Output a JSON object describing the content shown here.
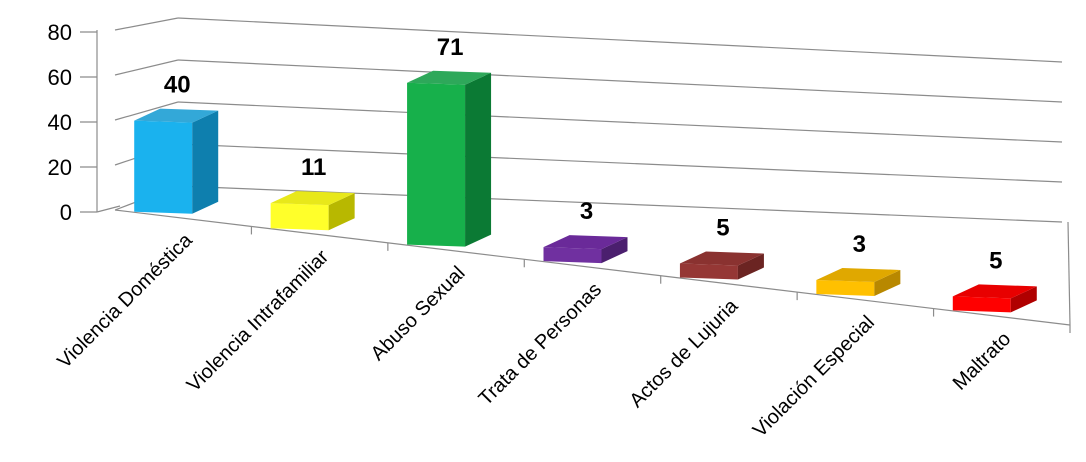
{
  "chart_data": {
    "type": "bar",
    "title": "",
    "xlabel": "",
    "ylabel": "",
    "ylim": [
      0,
      80
    ],
    "yticks": [
      0,
      20,
      40,
      60,
      80
    ],
    "grid": true,
    "legend": "none",
    "categories": [
      "Violencia Doméstica",
      "Violencia Intrafamiliar",
      "Abuso Sexual",
      "Trata de Personas",
      "Actos de Lujuria",
      "Violación Especial",
      "Maltrato"
    ],
    "values": [
      40,
      11,
      71,
      3,
      5,
      3,
      5
    ],
    "data_labels": [
      "40",
      "11",
      "71",
      "3",
      "5",
      "3",
      "5"
    ],
    "colors": {
      "front": [
        "#1ab2ee",
        "#ffff2a",
        "#17b04b",
        "#7030a0",
        "#953735",
        "#ffc000",
        "#ff0000"
      ],
      "side": [
        "#0e7fae",
        "#b8b800",
        "#0b7a34",
        "#4b1f6e",
        "#6b2422",
        "#b88800",
        "#b00000"
      ],
      "top": [
        "#33a8d8",
        "#e8e81a",
        "#2ea85a",
        "#6a2a99",
        "#8a3230",
        "#e0a800",
        "#e80000"
      ]
    }
  }
}
